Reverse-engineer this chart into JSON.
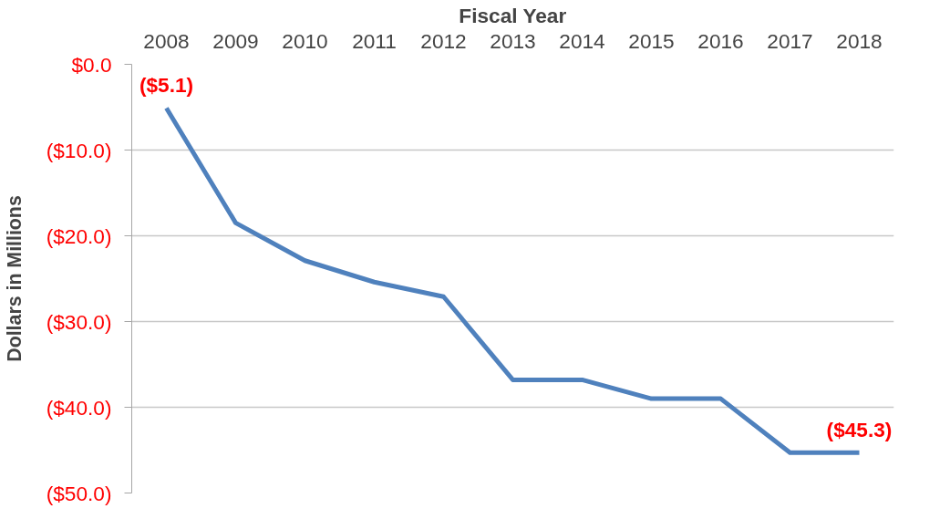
{
  "chart_data": {
    "type": "line",
    "xlabel": "Fiscal Year",
    "ylabel": "Dollars in Millions",
    "categories": [
      "2008",
      "2009",
      "2010",
      "2011",
      "2012",
      "2013",
      "2014",
      "2015",
      "2016",
      "2017",
      "2018"
    ],
    "series": [
      {
        "color": "#4f81bd",
        "values": [
          -5.1,
          -18.5,
          -22.9,
          -25.4,
          -27.1,
          -36.8,
          -36.8,
          -39.0,
          -39.0,
          -45.3,
          -45.3
        ],
        "value_labels": [
          "($5.1)",
          null,
          null,
          null,
          null,
          null,
          null,
          null,
          null,
          null,
          "($45.3)"
        ]
      }
    ],
    "ylim": [
      -50,
      0
    ],
    "yticks": [
      {
        "value": 0,
        "label": "$0.0"
      },
      {
        "value": -10,
        "label": "($10.0)"
      },
      {
        "value": -20,
        "label": "($20.0)"
      },
      {
        "value": -30,
        "label": "($30.0)"
      },
      {
        "value": -40,
        "label": "($40.0)"
      },
      {
        "value": -50,
        "label": "($50.0)"
      }
    ],
    "grid": "y",
    "marker": "none",
    "line_style": "solid"
  }
}
